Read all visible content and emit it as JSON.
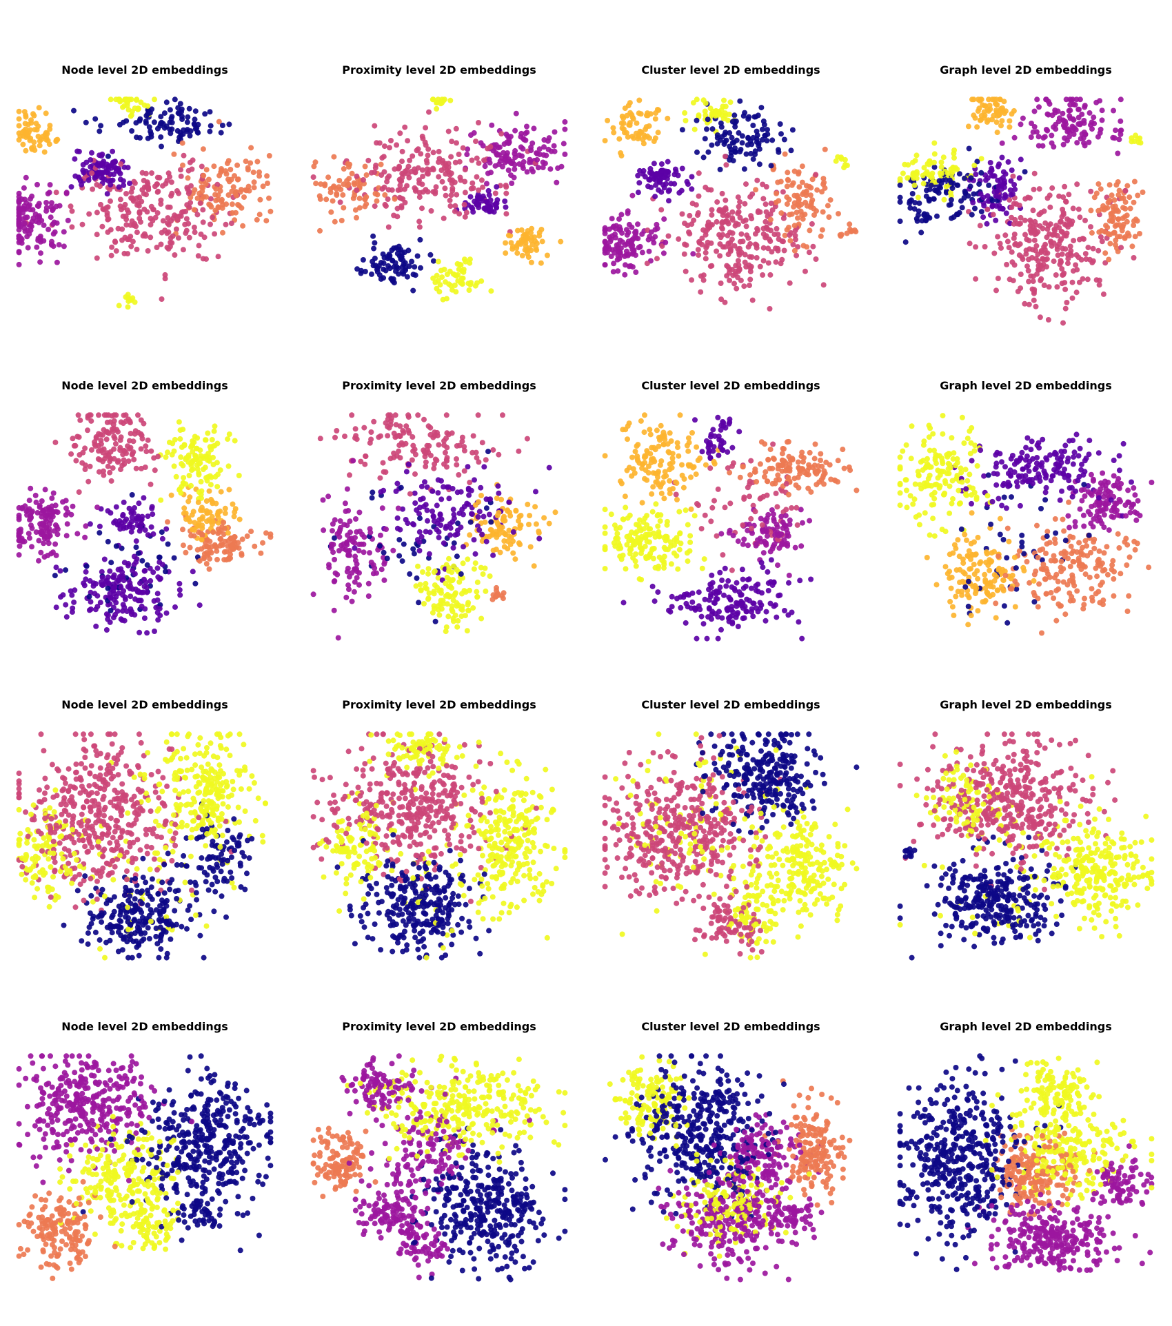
{
  "figure": {
    "rows": 4,
    "cols": 4
  },
  "palette": {
    "c0": "#0d0887",
    "c1": "#5c01a6",
    "c2": "#9c179e",
    "c3": "#cc4778",
    "c4": "#ed7953",
    "c5": "#fdb42f",
    "c6": "#f0f921"
  },
  "chart_data": [
    {
      "type": "scatter",
      "title": "Node level 2D embeddings",
      "grid": false,
      "axes": "off",
      "colormap": "plasma",
      "clusters": [
        {
          "color": "c5",
          "x": -8.5,
          "y": 6.5,
          "sx": 0.9,
          "sy": 0.9,
          "n": 60
        },
        {
          "color": "c6",
          "x": -1.2,
          "y": 9.3,
          "sx": 0.7,
          "sy": 0.6,
          "n": 35
        },
        {
          "color": "c0",
          "x": 1.5,
          "y": 7.2,
          "sx": 2.2,
          "sy": 0.9,
          "n": 90
        },
        {
          "color": "c1",
          "x": -3.3,
          "y": 3.3,
          "sx": 1.0,
          "sy": 0.8,
          "n": 90
        },
        {
          "color": "c2",
          "x": -8.8,
          "y": -1.0,
          "sx": 1.3,
          "sy": 1.5,
          "n": 130
        },
        {
          "color": "c3",
          "x": 0.5,
          "y": 0.0,
          "sx": 3.0,
          "sy": 2.2,
          "n": 230
        },
        {
          "color": "c4",
          "x": 6.2,
          "y": 2.0,
          "sx": 1.6,
          "sy": 1.7,
          "n": 110
        },
        {
          "color": "c6",
          "x": -1.5,
          "y": -7.5,
          "sx": 0.3,
          "sy": 0.3,
          "n": 12
        }
      ]
    },
    {
      "type": "scatter",
      "title": "Proximity level 2D embeddings",
      "grid": false,
      "axes": "off",
      "colormap": "plasma",
      "clusters": [
        {
          "color": "c6",
          "x": 0.0,
          "y": 9.2,
          "sx": 0.4,
          "sy": 0.3,
          "n": 12
        },
        {
          "color": "c2",
          "x": 6.0,
          "y": 4.8,
          "sx": 1.8,
          "sy": 1.1,
          "n": 120
        },
        {
          "color": "c3",
          "x": -1.0,
          "y": 3.0,
          "sx": 3.0,
          "sy": 2.0,
          "n": 200
        },
        {
          "color": "c4",
          "x": -6.8,
          "y": 2.0,
          "sx": 1.4,
          "sy": 1.2,
          "n": 70
        },
        {
          "color": "c1",
          "x": 3.5,
          "y": 1.0,
          "sx": 0.9,
          "sy": 0.6,
          "n": 50
        },
        {
          "color": "c0",
          "x": -3.5,
          "y": -4.3,
          "sx": 1.2,
          "sy": 0.9,
          "n": 80
        },
        {
          "color": "c5",
          "x": 6.5,
          "y": -2.6,
          "sx": 0.9,
          "sy": 0.7,
          "n": 55
        },
        {
          "color": "c6",
          "x": 1.3,
          "y": -5.4,
          "sx": 0.9,
          "sy": 0.9,
          "n": 50
        }
      ]
    },
    {
      "type": "scatter",
      "title": "Cluster level 2D embeddings",
      "grid": false,
      "axes": "off",
      "colormap": "plasma",
      "clusters": [
        {
          "color": "c5",
          "x": -7.4,
          "y": 7.0,
          "sx": 0.9,
          "sy": 1.0,
          "n": 60
        },
        {
          "color": "c6",
          "x": -1.3,
          "y": 8.2,
          "sx": 0.9,
          "sy": 0.7,
          "n": 40
        },
        {
          "color": "c0",
          "x": 1.0,
          "y": 6.3,
          "sx": 1.7,
          "sy": 1.2,
          "n": 100
        },
        {
          "color": "c1",
          "x": -5.2,
          "y": 2.8,
          "sx": 0.9,
          "sy": 0.7,
          "n": 70
        },
        {
          "color": "c2",
          "x": -8.0,
          "y": -2.5,
          "sx": 1.3,
          "sy": 1.2,
          "n": 120
        },
        {
          "color": "c3",
          "x": 0.3,
          "y": -2.3,
          "sx": 2.6,
          "sy": 2.3,
          "n": 250
        },
        {
          "color": "c4",
          "x": 5.2,
          "y": 0.5,
          "sx": 1.2,
          "sy": 2.0,
          "n": 90
        },
        {
          "color": "c6",
          "x": 8.5,
          "y": 4.0,
          "sx": 0.3,
          "sy": 0.4,
          "n": 8
        },
        {
          "color": "c4",
          "x": 9.0,
          "y": -1.5,
          "sx": 0.4,
          "sy": 0.3,
          "n": 10
        }
      ]
    },
    {
      "type": "scatter",
      "title": "Graph level 2D embeddings",
      "grid": false,
      "axes": "off",
      "colormap": "plasma",
      "clusters": [
        {
          "color": "c5",
          "x": -2.5,
          "y": 8.4,
          "sx": 0.9,
          "sy": 0.8,
          "n": 60
        },
        {
          "color": "c2",
          "x": 3.5,
          "y": 7.2,
          "sx": 1.7,
          "sy": 1.2,
          "n": 120
        },
        {
          "color": "c6",
          "x": -7.5,
          "y": 3.2,
          "sx": 1.4,
          "sy": 0.9,
          "n": 70
        },
        {
          "color": "c0",
          "x": -6.2,
          "y": 1.2,
          "sx": 1.7,
          "sy": 1.4,
          "n": 110
        },
        {
          "color": "c1",
          "x": -2.2,
          "y": 1.8,
          "sx": 0.9,
          "sy": 1.2,
          "n": 80
        },
        {
          "color": "c3",
          "x": 1.5,
          "y": -2.8,
          "sx": 2.3,
          "sy": 2.4,
          "n": 260
        },
        {
          "color": "c4",
          "x": 7.0,
          "y": -0.5,
          "sx": 1.0,
          "sy": 1.5,
          "n": 90
        },
        {
          "color": "c6",
          "x": 8.5,
          "y": 6.0,
          "sx": 0.3,
          "sy": 0.3,
          "n": 8
        }
      ]
    },
    {
      "type": "scatter",
      "title": "Node level 2D embeddings",
      "grid": false,
      "axes": "off",
      "colormap": "plasma",
      "clusters": [
        {
          "color": "c3",
          "x": -2.5,
          "y": 7.0,
          "sx": 1.6,
          "sy": 1.6,
          "n": 140
        },
        {
          "color": "c6",
          "x": 4.0,
          "y": 5.5,
          "sx": 1.2,
          "sy": 1.6,
          "n": 110
        },
        {
          "color": "c2",
          "x": -7.8,
          "y": 0.2,
          "sx": 1.5,
          "sy": 1.2,
          "n": 130
        },
        {
          "color": "c1",
          "x": -1.0,
          "y": 0.5,
          "sx": 1.0,
          "sy": 1.0,
          "n": 60
        },
        {
          "color": "c5",
          "x": 4.8,
          "y": 0.8,
          "sx": 1.2,
          "sy": 1.0,
          "n": 70
        },
        {
          "color": "c4",
          "x": 5.5,
          "y": -1.5,
          "sx": 1.5,
          "sy": 1.0,
          "n": 100
        },
        {
          "color": "c1",
          "x": -1.5,
          "y": -5.5,
          "sx": 2.0,
          "sy": 1.5,
          "n": 170
        },
        {
          "color": "c0",
          "x": 0.0,
          "y": -3.0,
          "sx": 2.5,
          "sy": 2.0,
          "n": 40
        }
      ]
    },
    {
      "type": "scatter",
      "title": "Proximity level 2D embeddings",
      "grid": false,
      "axes": "off",
      "colormap": "plasma",
      "clusters": [
        {
          "color": "c3",
          "x": -2.0,
          "y": 7.0,
          "sx": 3.0,
          "sy": 1.4,
          "n": 140
        },
        {
          "color": "c1",
          "x": 0.5,
          "y": 1.5,
          "sx": 2.5,
          "sy": 1.8,
          "n": 130
        },
        {
          "color": "c2",
          "x": -6.5,
          "y": -1.5,
          "sx": 1.2,
          "sy": 2.5,
          "n": 110
        },
        {
          "color": "c5",
          "x": 5.0,
          "y": 0.0,
          "sx": 1.4,
          "sy": 1.3,
          "n": 90
        },
        {
          "color": "c6",
          "x": 1.0,
          "y": -5.5,
          "sx": 1.3,
          "sy": 1.5,
          "n": 110
        },
        {
          "color": "c0",
          "x": -0.5,
          "y": -1.0,
          "sx": 3.0,
          "sy": 3.0,
          "n": 40
        },
        {
          "color": "c4",
          "x": 4.5,
          "y": -5.8,
          "sx": 0.3,
          "sy": 0.3,
          "n": 12
        }
      ]
    },
    {
      "type": "scatter",
      "title": "Cluster level 2D embeddings",
      "grid": false,
      "axes": "off",
      "colormap": "plasma",
      "clusters": [
        {
          "color": "c5",
          "x": -5.5,
          "y": 5.5,
          "sx": 1.7,
          "sy": 1.7,
          "n": 130
        },
        {
          "color": "c4",
          "x": 5.2,
          "y": 5.0,
          "sx": 1.8,
          "sy": 1.0,
          "n": 120
        },
        {
          "color": "c1",
          "x": -1.0,
          "y": 7.5,
          "sx": 0.7,
          "sy": 0.8,
          "n": 40
        },
        {
          "color": "c6",
          "x": -6.5,
          "y": -1.2,
          "sx": 1.8,
          "sy": 1.4,
          "n": 150
        },
        {
          "color": "c2",
          "x": 3.0,
          "y": -0.5,
          "sx": 1.3,
          "sy": 1.0,
          "n": 90
        },
        {
          "color": "c1",
          "x": 0.0,
          "y": -6.0,
          "sx": 2.5,
          "sy": 1.3,
          "n": 160
        },
        {
          "color": "c3",
          "x": 1.0,
          "y": 2.0,
          "sx": 2.5,
          "sy": 2.5,
          "n": 60
        }
      ]
    },
    {
      "type": "scatter",
      "title": "Graph level 2D embeddings",
      "grid": false,
      "axes": "off",
      "colormap": "plasma",
      "clusters": [
        {
          "color": "c6",
          "x": -6.5,
          "y": 4.5,
          "sx": 1.6,
          "sy": 2.0,
          "n": 150
        },
        {
          "color": "c1",
          "x": 1.0,
          "y": 5.0,
          "sx": 2.5,
          "sy": 1.5,
          "n": 160
        },
        {
          "color": "c2",
          "x": 6.0,
          "y": 2.0,
          "sx": 1.4,
          "sy": 1.1,
          "n": 110
        },
        {
          "color": "c5",
          "x": -3.5,
          "y": -3.8,
          "sx": 1.4,
          "sy": 1.6,
          "n": 130
        },
        {
          "color": "c4",
          "x": 3.5,
          "y": -3.5,
          "sx": 2.4,
          "sy": 1.8,
          "n": 170
        },
        {
          "color": "c0",
          "x": -1.0,
          "y": -1.0,
          "sx": 3.0,
          "sy": 3.0,
          "n": 40
        }
      ]
    },
    {
      "type": "scatter",
      "title": "Node level 2D embeddings",
      "grid": false,
      "axes": "off",
      "colormap": "plasma",
      "clusters": [
        {
          "color": "c3",
          "x": -3.5,
          "y": 2.5,
          "sx": 3.0,
          "sy": 3.3,
          "n": 420
        },
        {
          "color": "c6",
          "x": 4.5,
          "y": 4.5,
          "sx": 1.8,
          "sy": 2.8,
          "n": 230
        },
        {
          "color": "c6",
          "x": -7.5,
          "y": -0.5,
          "sx": 1.2,
          "sy": 2.0,
          "n": 100
        },
        {
          "color": "c0",
          "x": -0.5,
          "y": -6.0,
          "sx": 2.0,
          "sy": 1.6,
          "n": 220
        },
        {
          "color": "c0",
          "x": 5.5,
          "y": -1.0,
          "sx": 1.4,
          "sy": 1.5,
          "n": 90
        },
        {
          "color": "c6",
          "x": 0.0,
          "y": -2.0,
          "sx": 3.5,
          "sy": 4.0,
          "n": 60
        }
      ]
    },
    {
      "type": "scatter",
      "title": "Proximity level 2D embeddings",
      "grid": false,
      "axes": "off",
      "colormap": "plasma",
      "clusters": [
        {
          "color": "c6",
          "x": -1.0,
          "y": 8.0,
          "sx": 1.8,
          "sy": 0.8,
          "n": 80
        },
        {
          "color": "c3",
          "x": -2.0,
          "y": 3.0,
          "sx": 3.2,
          "sy": 2.6,
          "n": 360
        },
        {
          "color": "c6",
          "x": 5.5,
          "y": 0.5,
          "sx": 1.6,
          "sy": 2.8,
          "n": 220
        },
        {
          "color": "c0",
          "x": -1.5,
          "y": -5.0,
          "sx": 2.2,
          "sy": 2.0,
          "n": 260
        },
        {
          "color": "c6",
          "x": -6.5,
          "y": -0.5,
          "sx": 1.2,
          "sy": 1.8,
          "n": 90
        },
        {
          "color": "c6",
          "x": 0.0,
          "y": -2.0,
          "sx": 3.5,
          "sy": 3.5,
          "n": 60
        }
      ]
    },
    {
      "type": "scatter",
      "title": "Cluster level 2D embeddings",
      "grid": false,
      "axes": "off",
      "colormap": "plasma",
      "clusters": [
        {
          "color": "c0",
          "x": 2.5,
          "y": 6.0,
          "sx": 2.0,
          "sy": 2.0,
          "n": 260
        },
        {
          "color": "c3",
          "x": -4.0,
          "y": 1.0,
          "sx": 3.0,
          "sy": 2.8,
          "n": 380
        },
        {
          "color": "c6",
          "x": 5.5,
          "y": -2.0,
          "sx": 1.6,
          "sy": 2.0,
          "n": 200
        },
        {
          "color": "c3",
          "x": 0.0,
          "y": -6.5,
          "sx": 1.2,
          "sy": 1.0,
          "n": 80
        },
        {
          "color": "c6",
          "x": 1.5,
          "y": -5.5,
          "sx": 1.0,
          "sy": 1.6,
          "n": 70
        },
        {
          "color": "c6",
          "x": -3.0,
          "y": 1.0,
          "sx": 3.5,
          "sy": 3.5,
          "n": 100
        }
      ]
    },
    {
      "type": "scatter",
      "title": "Graph level 2D embeddings",
      "grid": false,
      "axes": "off",
      "colormap": "plasma",
      "clusters": [
        {
          "color": "c3",
          "x": -1.0,
          "y": 4.0,
          "sx": 3.0,
          "sy": 2.4,
          "n": 380
        },
        {
          "color": "c6",
          "x": -4.5,
          "y": 4.0,
          "sx": 1.2,
          "sy": 1.8,
          "n": 80
        },
        {
          "color": "c6",
          "x": 5.5,
          "y": -2.0,
          "sx": 1.8,
          "sy": 2.0,
          "n": 230
        },
        {
          "color": "c0",
          "x": -2.5,
          "y": -4.5,
          "sx": 2.5,
          "sy": 1.8,
          "n": 280
        },
        {
          "color": "c6",
          "x": -1.0,
          "y": -1.0,
          "sx": 3.5,
          "sy": 3.5,
          "n": 60
        },
        {
          "color": "c0",
          "x": -9.0,
          "y": -0.5,
          "sx": 0.3,
          "sy": 0.4,
          "n": 10
        }
      ]
    },
    {
      "type": "scatter",
      "title": "Node level 2D embeddings",
      "grid": false,
      "axes": "off",
      "colormap": "plasma",
      "clusters": [
        {
          "color": "c2",
          "x": -4.5,
          "y": 5.5,
          "sx": 2.5,
          "sy": 2.2,
          "n": 320
        },
        {
          "color": "c0",
          "x": 4.5,
          "y": 2.0,
          "sx": 2.6,
          "sy": 2.7,
          "n": 360
        },
        {
          "color": "c6",
          "x": -1.5,
          "y": -1.0,
          "sx": 2.0,
          "sy": 2.2,
          "n": 210
        },
        {
          "color": "c4",
          "x": -6.5,
          "y": -5.5,
          "sx": 1.4,
          "sy": 1.6,
          "n": 150
        },
        {
          "color": "c6",
          "x": 0.5,
          "y": -5.0,
          "sx": 1.0,
          "sy": 1.2,
          "n": 60
        },
        {
          "color": "c0",
          "x": 4.0,
          "y": -4.0,
          "sx": 1.0,
          "sy": 0.8,
          "n": 40
        }
      ]
    },
    {
      "type": "scatter",
      "title": "Proximity level 2D embeddings",
      "grid": false,
      "axes": "off",
      "colormap": "plasma",
      "clusters": [
        {
          "color": "c2",
          "x": -4.5,
          "y": 7.0,
          "sx": 1.3,
          "sy": 1.0,
          "n": 90
        },
        {
          "color": "c6",
          "x": 1.5,
          "y": 5.0,
          "sx": 3.2,
          "sy": 1.8,
          "n": 280
        },
        {
          "color": "c4",
          "x": -7.5,
          "y": 0.5,
          "sx": 1.1,
          "sy": 1.4,
          "n": 120
        },
        {
          "color": "c2",
          "x": -3.5,
          "y": -3.5,
          "sx": 1.3,
          "sy": 1.4,
          "n": 120
        },
        {
          "color": "c0",
          "x": 3.5,
          "y": -3.5,
          "sx": 2.4,
          "sy": 2.4,
          "n": 330
        },
        {
          "color": "c2",
          "x": -1.0,
          "y": 2.0,
          "sx": 2.0,
          "sy": 2.0,
          "n": 120
        },
        {
          "color": "c2",
          "x": -1.5,
          "y": -6.5,
          "sx": 1.0,
          "sy": 0.8,
          "n": 60
        }
      ]
    },
    {
      "type": "scatter",
      "title": "Cluster level 2D embeddings",
      "grid": false,
      "axes": "off",
      "colormap": "plasma",
      "clusters": [
        {
          "color": "c6",
          "x": -6.0,
          "y": 5.5,
          "sx": 1.4,
          "sy": 1.6,
          "n": 130
        },
        {
          "color": "c0",
          "x": -2.0,
          "y": 3.0,
          "sx": 2.4,
          "sy": 3.0,
          "n": 380
        },
        {
          "color": "c2",
          "x": 2.5,
          "y": 1.0,
          "sx": 1.3,
          "sy": 1.6,
          "n": 140
        },
        {
          "color": "c4",
          "x": 6.5,
          "y": 1.5,
          "sx": 1.1,
          "sy": 2.0,
          "n": 160
        },
        {
          "color": "c2",
          "x": 0.0,
          "y": -4.5,
          "sx": 2.2,
          "sy": 2.0,
          "n": 240
        },
        {
          "color": "c6",
          "x": 0.0,
          "y": -3.0,
          "sx": 2.0,
          "sy": 2.0,
          "n": 140
        },
        {
          "color": "c2",
          "x": 4.5,
          "y": -4.0,
          "sx": 1.0,
          "sy": 0.8,
          "n": 60
        }
      ]
    },
    {
      "type": "scatter",
      "title": "Graph level 2D embeddings",
      "grid": false,
      "axes": "off",
      "colormap": "plasma",
      "clusters": [
        {
          "color": "c0",
          "x": -5.0,
          "y": 0.5,
          "sx": 2.3,
          "sy": 3.2,
          "n": 420
        },
        {
          "color": "c6",
          "x": 2.0,
          "y": 6.0,
          "sx": 1.5,
          "sy": 1.5,
          "n": 130
        },
        {
          "color": "c6",
          "x": 3.5,
          "y": 1.5,
          "sx": 2.3,
          "sy": 2.0,
          "n": 200
        },
        {
          "color": "c4",
          "x": 0.5,
          "y": -0.5,
          "sx": 1.6,
          "sy": 1.5,
          "n": 190
        },
        {
          "color": "c2",
          "x": 2.0,
          "y": -6.0,
          "sx": 2.3,
          "sy": 1.4,
          "n": 260
        },
        {
          "color": "c2",
          "x": 7.0,
          "y": -1.0,
          "sx": 1.0,
          "sy": 1.0,
          "n": 80
        }
      ]
    }
  ]
}
